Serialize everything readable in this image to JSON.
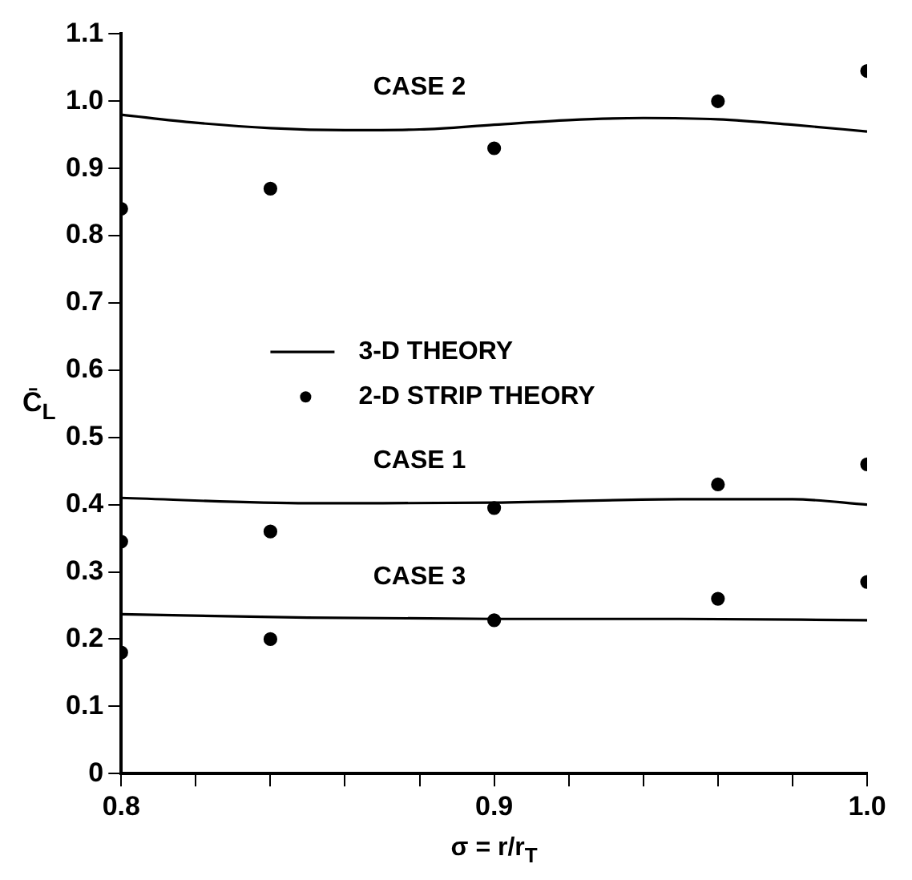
{
  "chart_data": {
    "type": "line",
    "xlabel": "σ = r/r$_{T}$",
    "ylabel": "C̄$_{L}$",
    "xlim": [
      0.8,
      1.0
    ],
    "xticks": [
      0.8,
      {
        "value": 0.82,
        "label": null
      },
      {
        "value": 0.84,
        "label": null
      },
      {
        "value": 0.86,
        "label": null
      },
      {
        "value": 0.88,
        "label": null
      },
      0.9,
      {
        "value": 0.92,
        "label": null
      },
      {
        "value": 0.94,
        "label": null
      },
      {
        "value": 0.96,
        "label": null
      },
      {
        "value": 0.98,
        "label": null
      },
      {
        "value": 1.0,
        "label": "1.0"
      }
    ],
    "ylim": [
      0,
      1.1
    ],
    "yticks": [
      0,
      0.1,
      0.2,
      0.3,
      0.4,
      0.5,
      0.6,
      0.7,
      0.8,
      0.9,
      {
        "value": 1.0,
        "label": "1.0"
      },
      1.1
    ],
    "grid": false,
    "legend": "center",
    "series": [
      {
        "name": "3-D THEORY",
        "color": "#000000",
        "marker": "none",
        "line_style": "solid",
        "x": [
          0.8,
          0.82,
          0.84,
          0.86,
          0.88,
          0.9,
          0.92,
          0.94,
          0.96,
          0.98,
          1.0
        ],
        "values": [
          0.98,
          0.968,
          0.96,
          0.957,
          0.958,
          0.965,
          0.972,
          0.975,
          0.973,
          0.965,
          0.955
        ]
      },
      {
        "color": "#000000",
        "marker": "none",
        "line_style": "solid",
        "x": [
          0.8,
          0.85,
          0.9,
          0.95,
          0.98,
          1.0
        ],
        "values": [
          0.41,
          0.402,
          0.403,
          0.408,
          0.408,
          0.4
        ]
      },
      {
        "color": "#000000",
        "marker": "none",
        "line_style": "solid",
        "x": [
          0.8,
          0.85,
          0.9,
          0.95,
          1.0
        ],
        "values": [
          0.237,
          0.232,
          0.23,
          0.23,
          0.228
        ]
      },
      {
        "name": "2-D STRIP THEORY",
        "type": "scatter",
        "color": "#000000",
        "marker": "circle",
        "x": [
          0.8,
          0.84,
          0.9,
          0.96,
          1.0
        ],
        "values": [
          0.84,
          0.87,
          0.93,
          1.0,
          1.045
        ]
      },
      {
        "type": "scatter",
        "color": "#000000",
        "marker": "circle",
        "x": [
          0.8,
          0.84,
          0.9,
          0.96,
          1.0
        ],
        "values": [
          0.345,
          0.36,
          0.395,
          0.43,
          0.46
        ]
      },
      {
        "type": "scatter",
        "color": "#000000",
        "marker": "circle",
        "x": [
          0.8,
          0.84,
          0.9,
          0.96,
          1.0
        ],
        "values": [
          0.18,
          0.2,
          0.228,
          0.26,
          0.285
        ]
      }
    ],
    "annotations": [
      "CASE 2",
      "CASE 1",
      "CASE 3"
    ]
  }
}
